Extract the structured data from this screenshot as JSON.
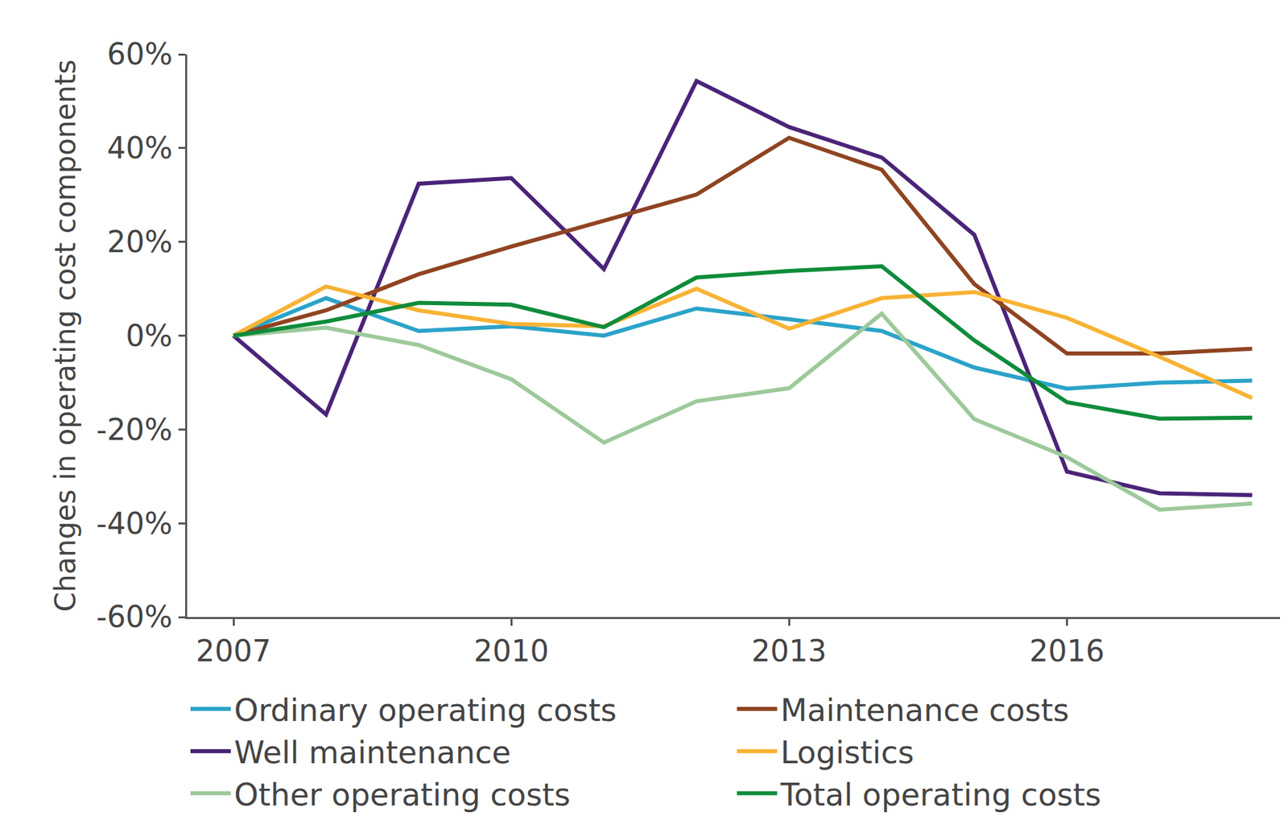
{
  "chart_data": {
    "type": "line",
    "y_label": "Changes in operating cost components",
    "x": [
      2007,
      2008,
      2009,
      2010,
      2011,
      2012,
      2013,
      2014,
      2015,
      2016,
      2017,
      2018
    ],
    "xlim": [
      2006.5,
      2018.3
    ],
    "xticks": [
      2007,
      2010,
      2013,
      2016
    ],
    "ylim": [
      -60,
      60
    ],
    "yticks": [
      {
        "value": -60,
        "label": "-60%"
      },
      {
        "value": -40,
        "label": "-40%"
      },
      {
        "value": -20,
        "label": "-20%"
      },
      {
        "value": 0,
        "label": "0%"
      },
      {
        "value": 20,
        "label": "20%"
      },
      {
        "value": 40,
        "label": "40%"
      },
      {
        "value": 60,
        "label": "60%"
      }
    ],
    "grid": false,
    "legend": "bottom",
    "series": [
      {
        "name": "Ordinary operating costs",
        "color": "#2ba3c9",
        "values": [
          0,
          8,
          1,
          2,
          0,
          5.8,
          3.5,
          1,
          -6.8,
          -11.3,
          -10,
          -9.6
        ]
      },
      {
        "name": "Well maintenance",
        "color": "#4a2478",
        "values": [
          0,
          -16.8,
          32.4,
          33.6,
          14.2,
          54.3,
          44.5,
          38,
          21.5,
          -29,
          -33.6,
          -34
        ]
      },
      {
        "name": "Other operating costs",
        "color": "#9dc99b",
        "values": [
          0,
          1.7,
          -2,
          -9.3,
          -22.8,
          -14,
          -11.2,
          4.7,
          -17.8,
          -25.9,
          -37.1,
          -35.8
        ]
      },
      {
        "name": "Maintenance costs",
        "color": "#8f4421",
        "values": [
          0,
          5.4,
          13.1,
          19,
          24.5,
          30.1,
          42.2,
          35.4,
          11,
          -3.8,
          -3.8,
          -2.8
        ]
      },
      {
        "name": "Logistics",
        "color": "#f7b334",
        "values": [
          0,
          10.5,
          5.4,
          2.5,
          2,
          10,
          1.5,
          8,
          9.3,
          3.8,
          -4.5,
          -13.3
        ]
      },
      {
        "name": "Total operating costs",
        "color": "#0f8c3b",
        "values": [
          0,
          3,
          7,
          6.6,
          1.8,
          12.4,
          13.8,
          14.8,
          -1,
          -14.2,
          -17.7,
          -17.5
        ]
      }
    ]
  }
}
